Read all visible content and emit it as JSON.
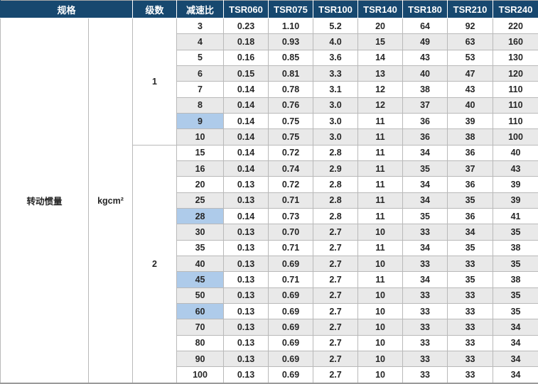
{
  "colors": {
    "header_bg": "#17486f",
    "header_text": "#ffffff",
    "row_alt_bg": "#e9e9e9",
    "highlight_bg": "#aecbea",
    "body_text": "#262626",
    "grid_line": "#b9b9b9"
  },
  "table": {
    "header": {
      "spec": "规格",
      "stages": "级数",
      "ratio": "减速比",
      "models": [
        "TSR060",
        "TSR075",
        "TSR100",
        "TSR140",
        "TSR180",
        "TSR210",
        "TSR240"
      ]
    },
    "spec_name": "转动惯量",
    "spec_unit": "kgcm²",
    "groups": [
      {
        "stage": "1",
        "rows": [
          {
            "ratio": "3",
            "highlight": false,
            "values": [
              "0.23",
              "1.10",
              "5.2",
              "20",
              "64",
              "92",
              "220"
            ]
          },
          {
            "ratio": "4",
            "highlight": false,
            "values": [
              "0.18",
              "0.93",
              "4.0",
              "15",
              "49",
              "63",
              "160"
            ]
          },
          {
            "ratio": "5",
            "highlight": false,
            "values": [
              "0.16",
              "0.85",
              "3.6",
              "14",
              "43",
              "53",
              "130"
            ]
          },
          {
            "ratio": "6",
            "highlight": true,
            "values": [
              "0.15",
              "0.81",
              "3.3",
              "13",
              "40",
              "47",
              "120"
            ]
          },
          {
            "ratio": "7",
            "highlight": false,
            "values": [
              "0.14",
              "0.78",
              "3.1",
              "12",
              "38",
              "43",
              "110"
            ]
          },
          {
            "ratio": "8",
            "highlight": false,
            "values": [
              "0.14",
              "0.76",
              "3.0",
              "12",
              "37",
              "40",
              "110"
            ]
          },
          {
            "ratio": "9",
            "highlight": true,
            "values": [
              "0.14",
              "0.75",
              "3.0",
              "11",
              "36",
              "39",
              "110"
            ]
          },
          {
            "ratio": "10",
            "highlight": false,
            "values": [
              "0.14",
              "0.75",
              "3.0",
              "11",
              "36",
              "38",
              "100"
            ]
          }
        ]
      },
      {
        "stage": "2",
        "rows": [
          {
            "ratio": "15",
            "highlight": false,
            "values": [
              "0.14",
              "0.72",
              "2.8",
              "11",
              "34",
              "36",
              "40"
            ]
          },
          {
            "ratio": "16",
            "highlight": true,
            "values": [
              "0.14",
              "0.74",
              "2.9",
              "11",
              "35",
              "37",
              "43"
            ]
          },
          {
            "ratio": "20",
            "highlight": false,
            "values": [
              "0.13",
              "0.72",
              "2.8",
              "11",
              "34",
              "36",
              "39"
            ]
          },
          {
            "ratio": "25",
            "highlight": false,
            "values": [
              "0.13",
              "0.71",
              "2.8",
              "11",
              "34",
              "35",
              "39"
            ]
          },
          {
            "ratio": "28",
            "highlight": true,
            "values": [
              "0.14",
              "0.73",
              "2.8",
              "11",
              "35",
              "36",
              "41"
            ]
          },
          {
            "ratio": "30",
            "highlight": false,
            "values": [
              "0.13",
              "0.70",
              "2.7",
              "10",
              "33",
              "34",
              "35"
            ]
          },
          {
            "ratio": "35",
            "highlight": false,
            "values": [
              "0.13",
              "0.71",
              "2.7",
              "11",
              "34",
              "35",
              "38"
            ]
          },
          {
            "ratio": "40",
            "highlight": false,
            "values": [
              "0.13",
              "0.69",
              "2.7",
              "10",
              "33",
              "33",
              "35"
            ]
          },
          {
            "ratio": "45",
            "highlight": true,
            "values": [
              "0.13",
              "0.71",
              "2.7",
              "11",
              "34",
              "35",
              "38"
            ]
          },
          {
            "ratio": "50",
            "highlight": false,
            "values": [
              "0.13",
              "0.69",
              "2.7",
              "10",
              "33",
              "33",
              "35"
            ]
          },
          {
            "ratio": "60",
            "highlight": true,
            "values": [
              "0.13",
              "0.69",
              "2.7",
              "10",
              "33",
              "33",
              "35"
            ]
          },
          {
            "ratio": "70",
            "highlight": false,
            "values": [
              "0.13",
              "0.69",
              "2.7",
              "10",
              "33",
              "33",
              "34"
            ]
          },
          {
            "ratio": "80",
            "highlight": false,
            "values": [
              "0.13",
              "0.69",
              "2.7",
              "10",
              "33",
              "33",
              "34"
            ]
          },
          {
            "ratio": "90",
            "highlight": true,
            "values": [
              "0.13",
              "0.69",
              "2.7",
              "10",
              "33",
              "33",
              "34"
            ]
          },
          {
            "ratio": "100",
            "highlight": false,
            "values": [
              "0.13",
              "0.69",
              "2.7",
              "10",
              "33",
              "33",
              "34"
            ]
          }
        ]
      }
    ]
  }
}
